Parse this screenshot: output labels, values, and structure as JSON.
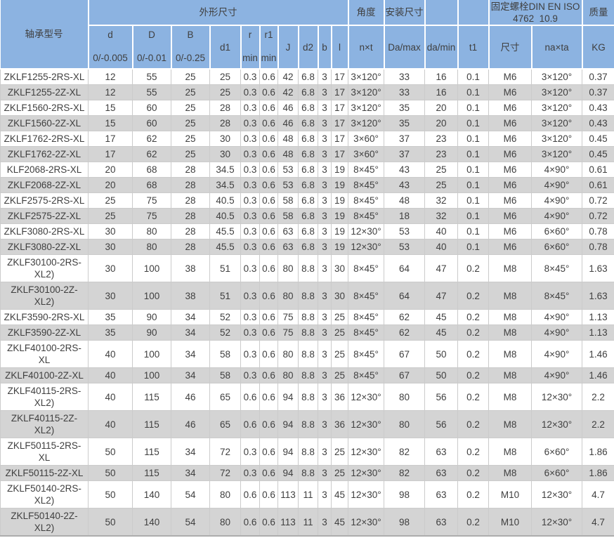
{
  "colors": {
    "header_bg": "#8CB3E1",
    "row_bg": "#FFFFFF",
    "row_alt_bg": "#D4D4D4",
    "grid_line": "#CBCBCB",
    "header_border": "#FFFFFF",
    "text": "#3F3F3F"
  },
  "table": {
    "header": {
      "model": "轴承型号",
      "groups": {
        "dims": "外形尺寸",
        "angle": "角度",
        "mount": "安装尺寸",
        "bolt": "固定螺栓DIN EN ISO 4762  10.9",
        "mass": "质量"
      },
      "cols": {
        "d": "d",
        "d_tol": "0/-0.005",
        "D": "D",
        "D_tol": "0/-0.01",
        "B": "B",
        "B_tol": "0/-0.25",
        "d1": "d1",
        "r": "r",
        "r_min": "min",
        "r1": "r1",
        "r1_min": "min",
        "J": "J",
        "d2": "d2",
        "b": "b",
        "l": "l",
        "nxt": "n×t",
        "Da_max": "Da/max",
        "da_min": "da/min",
        "t1": "t1",
        "bolt_size": "尺寸",
        "naxta": "na×ta",
        "kg": "KG"
      }
    },
    "col_keys": [
      "model",
      "d",
      "D",
      "B",
      "d1",
      "r",
      "r1",
      "J",
      "d2",
      "b",
      "l",
      "nxt",
      "Da_max",
      "da_min",
      "t1",
      "bolt_size",
      "naxta",
      "kg"
    ],
    "rows": [
      [
        "ZKLF1255-2RS-XL",
        "12",
        "55",
        "25",
        "25",
        "0.3",
        "0.6",
        "42",
        "6.8",
        "3",
        "17",
        "3×120°",
        "33",
        "16",
        "0.1",
        "M6",
        "3×120°",
        "0.37"
      ],
      [
        "ZKLF1255-2Z-XL",
        "12",
        "55",
        "25",
        "25",
        "0.3",
        "0.6",
        "42",
        "6.8",
        "3",
        "17",
        "3×120°",
        "33",
        "16",
        "0.1",
        "M6",
        "3×120°",
        "0.37"
      ],
      [
        "ZKLF1560-2RS-XL",
        "15",
        "60",
        "25",
        "28",
        "0.3",
        "0.6",
        "46",
        "6.8",
        "3",
        "17",
        "3×120°",
        "35",
        "20",
        "0.1",
        "M6",
        "3×120°",
        "0.43"
      ],
      [
        "ZKLF1560-2Z-XL",
        "15",
        "60",
        "25",
        "28",
        "0.3",
        "0.6",
        "46",
        "6.8",
        "3",
        "17",
        "3×120°",
        "35",
        "20",
        "0.1",
        "M6",
        "3×120°",
        "0.43"
      ],
      [
        "ZKLF1762-2RS-XL",
        "17",
        "62",
        "25",
        "30",
        "0.3",
        "0.6",
        "48",
        "6.8",
        "3",
        "17",
        "3×60°",
        "37",
        "23",
        "0.1",
        "M6",
        "3×120°",
        "0.45"
      ],
      [
        "ZKLF1762-2Z-XL",
        "17",
        "62",
        "25",
        "30",
        "0.3",
        "0.6",
        "48",
        "6.8",
        "3",
        "17",
        "3×60°",
        "37",
        "23",
        "0.1",
        "M6",
        "3×120°",
        "0.45"
      ],
      [
        "KLF2068-2RS-XL",
        "20",
        "68",
        "28",
        "34.5",
        "0.3",
        "0.6",
        "53",
        "6.8",
        "3",
        "19",
        "8×45°",
        "43",
        "25",
        "0.1",
        "M6",
        "4×90°",
        "0.61"
      ],
      [
        "ZKLF2068-2Z-XL",
        "20",
        "68",
        "28",
        "34.5",
        "0.3",
        "0.6",
        "53",
        "6.8",
        "3",
        "19",
        "8×45°",
        "43",
        "25",
        "0.1",
        "M6",
        "4×90°",
        "0.61"
      ],
      [
        "ZKLF2575-2RS-XL",
        "25",
        "75",
        "28",
        "40.5",
        "0.3",
        "0.6",
        "58",
        "6.8",
        "3",
        "19",
        "8×45°",
        "48",
        "32",
        "0.1",
        "M6",
        "4×90°",
        "0.72"
      ],
      [
        "ZKLF2575-2Z-XL",
        "25",
        "75",
        "28",
        "40.5",
        "0.3",
        "0.6",
        "58",
        "6.8",
        "3",
        "19",
        "8×45°",
        "18",
        "32",
        "0.1",
        "M6",
        "4×90°",
        "0.72"
      ],
      [
        "ZKLF3080-2RS-XL",
        "30",
        "80",
        "28",
        "45.5",
        "0.3",
        "0.6",
        "63",
        "6.8",
        "3",
        "19",
        "12×30°",
        "53",
        "40",
        "0.1",
        "M6",
        "6×60°",
        "0.78"
      ],
      [
        "ZKLF3080-2Z-XL",
        "30",
        "80",
        "28",
        "45.5",
        "0.3",
        "0.6",
        "63",
        "6.8",
        "3",
        "19",
        "12×30°",
        "53",
        "40",
        "0.1",
        "M6",
        "6×60°",
        "0.78"
      ],
      [
        "ZKLF30100-2RS-XL2)",
        "30",
        "100",
        "38",
        "51",
        "0.3",
        "0.6",
        "80",
        "8.8",
        "3",
        "30",
        "8×45°",
        "64",
        "47",
        "0.2",
        "M8",
        "8×45°",
        "1.63"
      ],
      [
        "ZKLF30100-2Z-XL2)",
        "30",
        "100",
        "38",
        "51",
        "0.3",
        "0.6",
        "80",
        "8.8",
        "3",
        "30",
        "8×45°",
        "64",
        "47",
        "0.2",
        "M8",
        "8×45°",
        "1.63"
      ],
      [
        "ZKLF3590-2RS-XL",
        "35",
        "90",
        "34",
        "52",
        "0.3",
        "0.6",
        "75",
        "8.8",
        "3",
        "25",
        "8×45°",
        "62",
        "45",
        "0.2",
        "M8",
        "4×90°",
        "1.13"
      ],
      [
        "ZKLF3590-2Z-XL",
        "35",
        "90",
        "34",
        "52",
        "0.3",
        "0.6",
        "75",
        "8.8",
        "3",
        "25",
        "8×45°",
        "62",
        "45",
        "0.2",
        "M8",
        "4×90°",
        "1.13"
      ],
      [
        "ZKLF40100-2RS-XL",
        "40",
        "100",
        "34",
        "58",
        "0.3",
        "0.6",
        "80",
        "8.8",
        "3",
        "25",
        "8×45°",
        "67",
        "50",
        "0.2",
        "M8",
        "4×90°",
        "1.46"
      ],
      [
        "ZKLF40100-2Z-XL",
        "40",
        "100",
        "34",
        "58",
        "0.3",
        "0.6",
        "80",
        "8.8",
        "3",
        "25",
        "8×45°",
        "67",
        "50",
        "0.2",
        "M8",
        "4×90°",
        "1.46"
      ],
      [
        "ZKLF40115-2RS-XL2)",
        "40",
        "115",
        "46",
        "65",
        "0.6",
        "0.6",
        "94",
        "8.8",
        "3",
        "36",
        "12×30°",
        "80",
        "56",
        "0.2",
        "M8",
        "12×30°",
        "2.2"
      ],
      [
        "ZKLF40115-2Z-XL2)",
        "40",
        "115",
        "46",
        "65",
        "0.6",
        "0.6",
        "94",
        "8.8",
        "3",
        "36",
        "12×30°",
        "80",
        "56",
        "0.2",
        "M8",
        "12×30°",
        "2.2"
      ],
      [
        "ZKLF50115-2RS-XL",
        "50",
        "115",
        "34",
        "72",
        "0.3",
        "0.6",
        "94",
        "8.8",
        "3",
        "25",
        "12×30°",
        "82",
        "63",
        "0.2",
        "M8",
        "6×60°",
        "1.86"
      ],
      [
        "ZKLF50115-2Z-XL",
        "50",
        "115",
        "34",
        "72",
        "0.3",
        "0.6",
        "94",
        "8.8",
        "3",
        "25",
        "12×30°",
        "82",
        "63",
        "0.2",
        "M8",
        "6×60°",
        "1.86"
      ],
      [
        "ZKLF50140-2RS-XL2)",
        "50",
        "140",
        "54",
        "80",
        "0.6",
        "0.6",
        "113",
        "11",
        "3",
        "45",
        "12×30°",
        "98",
        "63",
        "0.2",
        "M10",
        "12×30°",
        "4.7"
      ],
      [
        "ZKLF50140-2Z-XL2)",
        "50",
        "140",
        "54",
        "80",
        "0.6",
        "0.6",
        "113",
        "11",
        "3",
        "45",
        "12×30°",
        "98",
        "63",
        "0.2",
        "M10",
        "12×30°",
        "4.7"
      ]
    ]
  }
}
